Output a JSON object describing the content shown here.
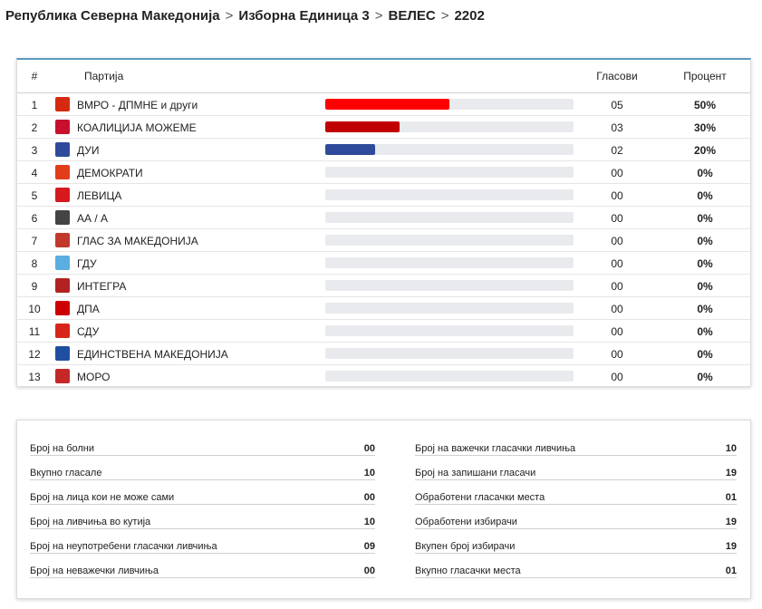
{
  "breadcrumb": {
    "country": "Република Северна Македонија",
    "unit": "Изборна Единица 3",
    "municipality": "ВЕЛЕС",
    "station": "2202"
  },
  "table": {
    "headers": {
      "num": "#",
      "party": "Партија",
      "votes": "Гласови",
      "percent": "Процент"
    },
    "rows": [
      {
        "num": "1",
        "party": "ВМРО - ДПМНЕ и други",
        "votes": "05",
        "percent": "50%",
        "share": 0.5,
        "bar_color": "#fe0000",
        "logo_color": "#d62a10",
        "logo_icon": "vmro-logo-icon"
      },
      {
        "num": "2",
        "party": "КОАЛИЦИЈА МОЖЕМЕ",
        "votes": "03",
        "percent": "30%",
        "share": 0.3,
        "bar_color": "#c00000",
        "logo_color": "#c8102e",
        "logo_icon": "mozeme-logo-icon"
      },
      {
        "num": "3",
        "party": "ДУИ",
        "votes": "02",
        "percent": "20%",
        "share": 0.2,
        "bar_color": "#2e4a9a",
        "logo_color": "#2e4a9a",
        "logo_icon": "dui-logo-icon"
      },
      {
        "num": "4",
        "party": "ДЕМОКРАТИ",
        "votes": "00",
        "percent": "0%",
        "share": 0,
        "bar_color": "#cccccc",
        "logo_color": "#e23c1a",
        "logo_icon": "demokrati-logo-icon"
      },
      {
        "num": "5",
        "party": "ЛЕВИЦА",
        "votes": "00",
        "percent": "0%",
        "share": 0,
        "bar_color": "#cccccc",
        "logo_color": "#d71920",
        "logo_icon": "levica-logo-icon"
      },
      {
        "num": "6",
        "party": "АА / А",
        "votes": "00",
        "percent": "0%",
        "share": 0,
        "bar_color": "#cccccc",
        "logo_color": "#444444",
        "logo_icon": "aa-logo-icon"
      },
      {
        "num": "7",
        "party": "ГЛАС ЗА МАКЕДОНИЈА",
        "votes": "00",
        "percent": "0%",
        "share": 0,
        "bar_color": "#cccccc",
        "logo_color": "#c0392b",
        "logo_icon": "glas-logo-icon"
      },
      {
        "num": "8",
        "party": "ГДУ",
        "votes": "00",
        "percent": "0%",
        "share": 0,
        "bar_color": "#cccccc",
        "logo_color": "#5aaee0",
        "logo_icon": "gdu-logo-icon"
      },
      {
        "num": "9",
        "party": "ИНТЕГРА",
        "votes": "00",
        "percent": "0%",
        "share": 0,
        "bar_color": "#cccccc",
        "logo_color": "#b22222",
        "logo_icon": "integra-logo-icon"
      },
      {
        "num": "10",
        "party": "ДПА",
        "votes": "00",
        "percent": "0%",
        "share": 0,
        "bar_color": "#cccccc",
        "logo_color": "#cc0000",
        "logo_icon": "dpa-logo-icon"
      },
      {
        "num": "11",
        "party": "СДУ",
        "votes": "00",
        "percent": "0%",
        "share": 0,
        "bar_color": "#cccccc",
        "logo_color": "#d8251c",
        "logo_icon": "sdu-logo-icon"
      },
      {
        "num": "12",
        "party": "ЕДИНСТВЕНА МАКЕДОНИЈА",
        "votes": "00",
        "percent": "0%",
        "share": 0,
        "bar_color": "#cccccc",
        "logo_color": "#1f4fa0",
        "logo_icon": "edinstvena-logo-icon"
      },
      {
        "num": "13",
        "party": "МОРО",
        "votes": "00",
        "percent": "0%",
        "share": 0,
        "bar_color": "#cccccc",
        "logo_color": "#c62828",
        "logo_icon": "moro-logo-icon"
      }
    ]
  },
  "stats": {
    "left": [
      {
        "label": "Број на болни",
        "value": "00"
      },
      {
        "label": "Вкупно гласале",
        "value": "10"
      },
      {
        "label": "Број на лица кои не може сами",
        "value": "00"
      },
      {
        "label": "Број на ливчиња во кутија",
        "value": "10"
      },
      {
        "label": "Број на неупотребени гласачки ливчиња",
        "value": "09"
      },
      {
        "label": "Број на неважечки ливчиња",
        "value": "00"
      }
    ],
    "right": [
      {
        "label": "Број на важечки гласачки ливчиња",
        "value": "10"
      },
      {
        "label": "Број на запишани гласачи",
        "value": "19"
      },
      {
        "label": "Обработени гласачки места",
        "value": "01"
      },
      {
        "label": "Обработени избирачи",
        "value": "19"
      },
      {
        "label": "Вкупен број избирачи",
        "value": "19"
      },
      {
        "label": "Вкупно гласачки места",
        "value": "01"
      }
    ]
  }
}
